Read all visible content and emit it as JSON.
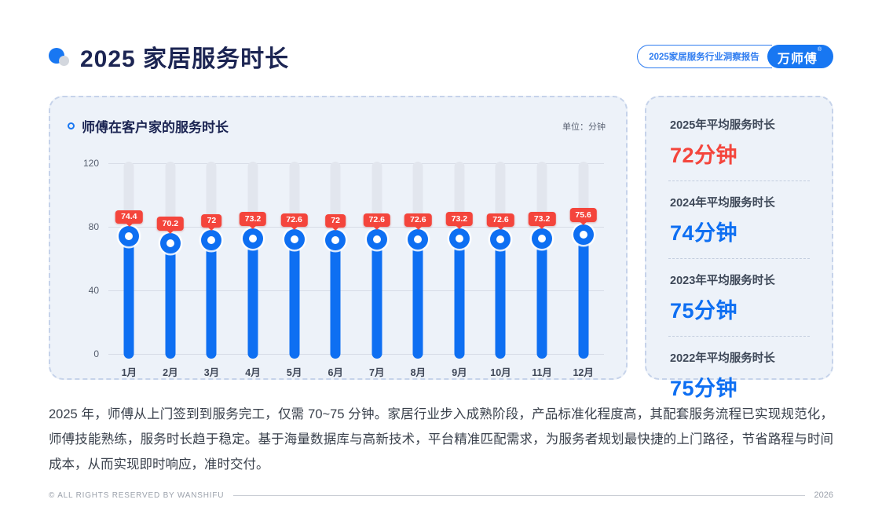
{
  "header": {
    "title": "2025 家居服务时长",
    "report_badge": "2025家居服务行业洞察报告",
    "brand": "万师傅",
    "brand_reg": "®"
  },
  "chart_panel": {
    "title": "师傅在客户家的服务时长",
    "unit_label": "单位：分钟"
  },
  "chart_data": {
    "type": "bar",
    "title": "师傅在客户家的服务时长",
    "unit": "分钟",
    "categories": [
      "1月",
      "2月",
      "3月",
      "4月",
      "5月",
      "6月",
      "7月",
      "8月",
      "9月",
      "10月",
      "11月",
      "12月"
    ],
    "values": [
      74.4,
      70.2,
      72,
      73.2,
      72.6,
      72,
      72.6,
      72.6,
      73.2,
      72.6,
      73.2,
      75.6
    ],
    "ylim": [
      0,
      120
    ],
    "yticks": [
      0,
      40,
      80,
      120
    ],
    "grid": true,
    "legend_position": "none",
    "bar_color": "#0e6ff2",
    "track_color": "#e2e6ee",
    "badge_color": "#f4453c"
  },
  "stats_panel": {
    "items": [
      {
        "label": "2025年平均服务时长",
        "value": "72分钟",
        "color": "#f4453c"
      },
      {
        "label": "2024年平均服务时长",
        "value": "74分钟",
        "color": "#0e6ff2"
      },
      {
        "label": "2023年平均服务时长",
        "value": "75分钟",
        "color": "#0e6ff2"
      },
      {
        "label": "2022年平均服务时长",
        "value": "75分钟",
        "color": "#0e6ff2"
      }
    ]
  },
  "body_text": "2025 年，师傅从上门签到到服务完工，仅需 70~75 分钟。家居行业步入成熟阶段，产品标准化程度高，其配套服务流程已实现规范化，师傅技能熟练，服务时长趋于稳定。基于海量数据库与高新技术，平台精准匹配需求，为服务者规划最快捷的上门路径，节省路程与时间成本，从而实现即时响应，准时交付。",
  "footer": {
    "copyright": "© ALL RIGHTS RESERVED BY WANSHIFU",
    "year": "2026"
  }
}
